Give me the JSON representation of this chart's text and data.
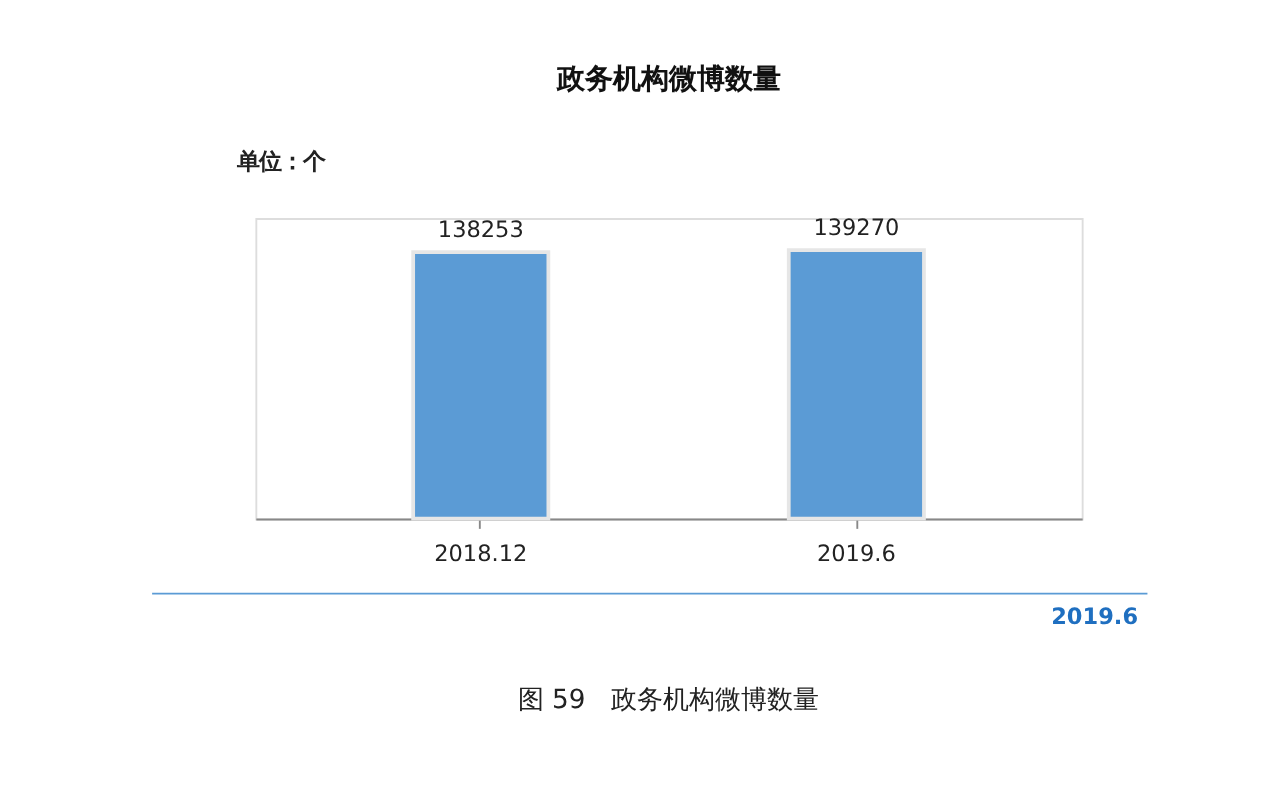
{
  "chart_data": {
    "type": "bar",
    "title": "政务机构微博数量",
    "categories": [
      "2018.12",
      "2019.6"
    ],
    "values": [
      138253,
      139270
    ],
    "color": "#5b9bd5",
    "data_labels": true,
    "annotations": [
      "单位：个",
      "2019.6",
      "图 59　政务机构微博数量"
    ]
  }
}
